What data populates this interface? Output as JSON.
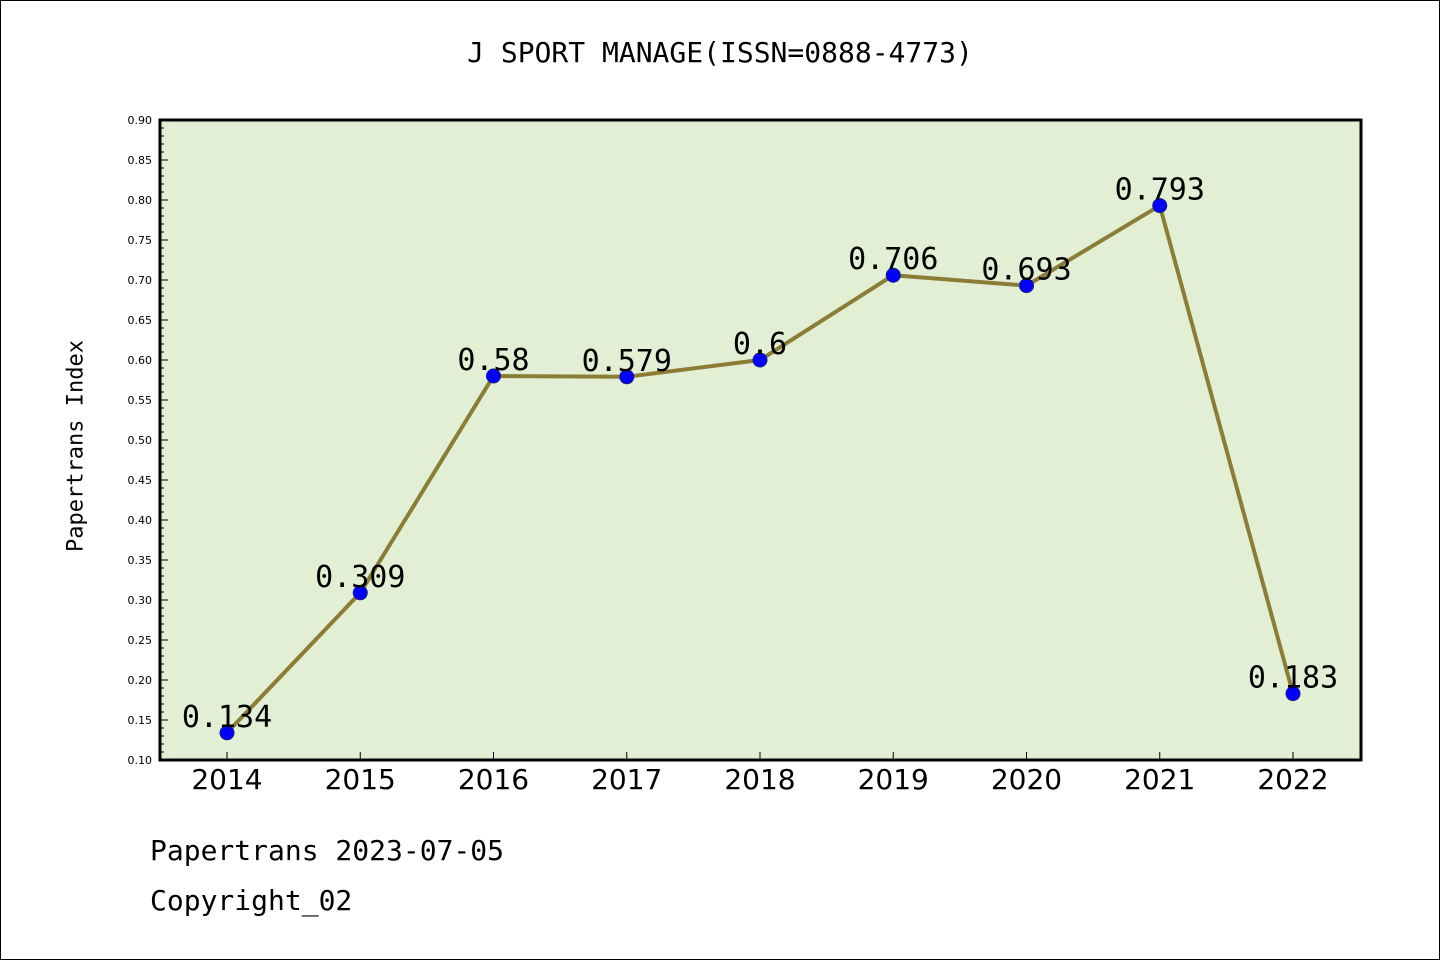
{
  "chart_data": {
    "type": "line",
    "title": "J SPORT MANAGE(ISSN=0888-4773)",
    "ylabel": "Papertrans Index",
    "xlabel": "",
    "categories": [
      "2014",
      "2015",
      "2016",
      "2017",
      "2018",
      "2019",
      "2020",
      "2021",
      "2022"
    ],
    "series": [
      {
        "values": [
          0.134,
          0.309,
          0.58,
          0.579,
          0.6,
          0.706,
          0.693,
          0.793,
          0.183
        ],
        "labels": [
          "0.134",
          "0.309",
          "0.58",
          "0.579",
          "0.6",
          "0.706",
          "0.693",
          "0.793",
          "0.183"
        ],
        "line_color": "#8b7d35",
        "marker_color": "#0000ff"
      }
    ],
    "ylim": [
      0.1,
      0.9
    ],
    "yticks": [
      "0.10",
      "0.15",
      "0.20",
      "0.25",
      "0.30",
      "0.35",
      "0.40",
      "0.45",
      "0.50",
      "0.55",
      "0.60",
      "0.65",
      "0.70",
      "0.75",
      "0.80",
      "0.85",
      "0.90"
    ],
    "background_color": "#e2efd4",
    "grid": false
  },
  "footer": {
    "date_line": "Papertrans 2023-07-05",
    "copyright": "Copyright_02"
  }
}
